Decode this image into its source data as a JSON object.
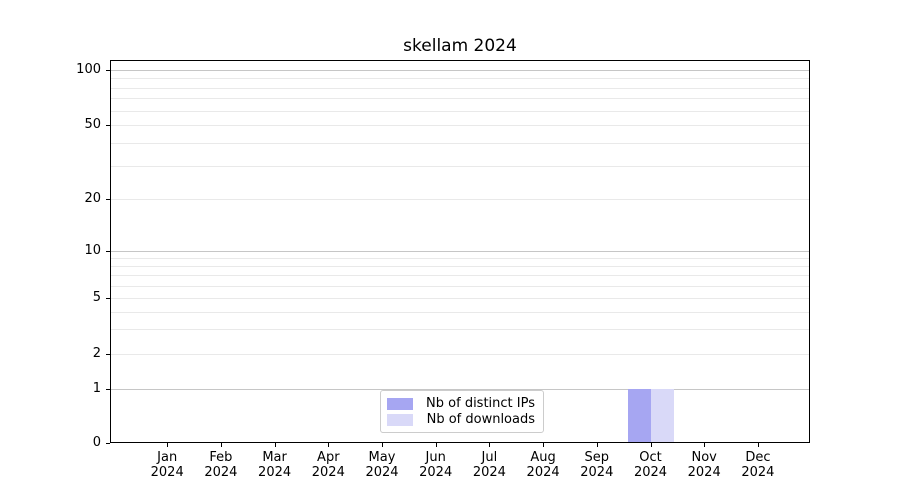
{
  "chart_data": {
    "type": "bar",
    "title": "skellam 2024",
    "categories": [
      {
        "month": "Jan",
        "year": "2024"
      },
      {
        "month": "Feb",
        "year": "2024"
      },
      {
        "month": "Mar",
        "year": "2024"
      },
      {
        "month": "Apr",
        "year": "2024"
      },
      {
        "month": "May",
        "year": "2024"
      },
      {
        "month": "Jun",
        "year": "2024"
      },
      {
        "month": "Jul",
        "year": "2024"
      },
      {
        "month": "Aug",
        "year": "2024"
      },
      {
        "month": "Sep",
        "year": "2024"
      },
      {
        "month": "Oct",
        "year": "2024"
      },
      {
        "month": "Nov",
        "year": "2024"
      },
      {
        "month": "Dec",
        "year": "2024"
      }
    ],
    "series": [
      {
        "name": "Nb of distinct IPs",
        "color": "#a6a6f2",
        "values": [
          0,
          0,
          0,
          0,
          0,
          0,
          0,
          0,
          0,
          1,
          0,
          0
        ]
      },
      {
        "name": "Nb of downloads",
        "color": "#d9d9f8",
        "values": [
          0,
          0,
          0,
          0,
          0,
          0,
          0,
          0,
          0,
          1,
          0,
          0
        ]
      }
    ],
    "y_axis": {
      "scale": "symlog",
      "ticks": [
        0,
        1,
        2,
        5,
        10,
        20,
        50,
        100
      ],
      "major_gridline_values": [
        1,
        10,
        100
      ],
      "minor_gridline_values": [
        2,
        3,
        4,
        5,
        6,
        7,
        8,
        9,
        20,
        30,
        40,
        50,
        60,
        70,
        80,
        90
      ]
    },
    "legend": {
      "position": "lower center"
    },
    "colors": {
      "major_grid": "#c6c6c6",
      "minor_grid": "#e9e9e9",
      "axis": "#000000",
      "background": "#ffffff"
    }
  }
}
